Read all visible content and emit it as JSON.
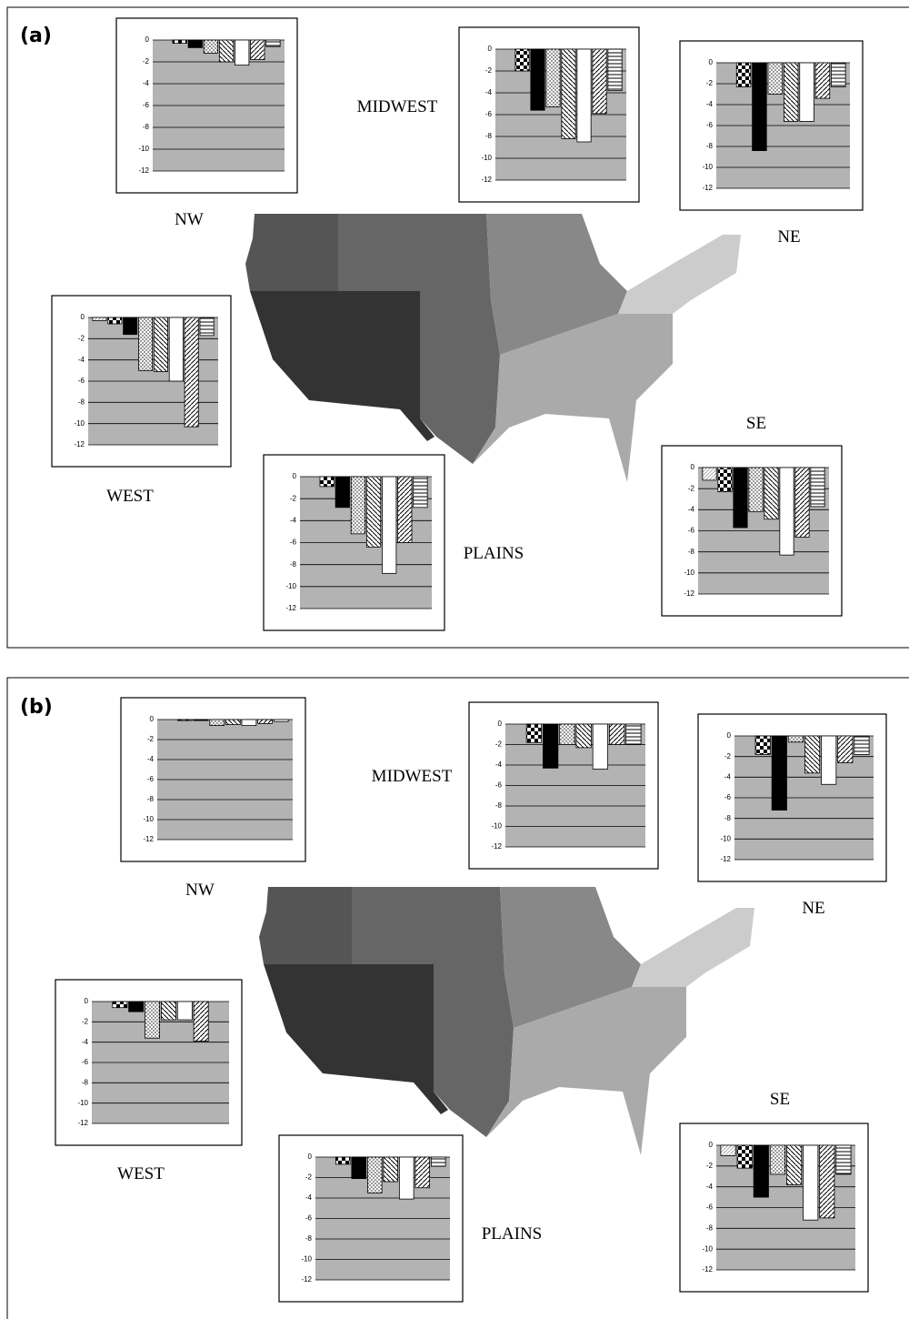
{
  "panels": [
    "(a)",
    "(b)"
  ],
  "chart_data": [
    {
      "type": "bar",
      "title": "NW",
      "categories": [
        null,
        null,
        null,
        null,
        null,
        null,
        null,
        null
      ],
      "values": [
        0,
        -0.3,
        -0.7,
        -1.2,
        -2.0,
        -2.3,
        -1.8,
        -0.6
      ],
      "ylim": [
        -12,
        0
      ],
      "yticks": [
        0,
        -2,
        -4,
        -6,
        -8,
        -10,
        -12
      ],
      "grid": true
    },
    {
      "type": "bar",
      "title": "MIDWEST",
      "categories": [
        null,
        null,
        null,
        null,
        null,
        null,
        null,
        null
      ],
      "values": [
        0,
        -2.0,
        -5.6,
        -5.3,
        -8.2,
        -8.5,
        -5.9,
        -3.8
      ],
      "ylim": [
        -12,
        0
      ],
      "yticks": [
        0,
        -2,
        -4,
        -6,
        -8,
        -10,
        -12
      ],
      "grid": true
    },
    {
      "type": "bar",
      "title": "NE",
      "categories": [
        null,
        null,
        null,
        null,
        null,
        null,
        null,
        null
      ],
      "values": [
        0,
        -2.3,
        -8.4,
        -3.0,
        -5.6,
        -5.6,
        -3.4,
        -2.3
      ],
      "ylim": [
        -12,
        0
      ],
      "yticks": [
        0,
        -2,
        -4,
        -6,
        -8,
        -10,
        -12
      ],
      "grid": true
    },
    {
      "type": "bar",
      "title": "WEST",
      "categories": [
        null,
        null,
        null,
        null,
        null,
        null,
        null,
        null
      ],
      "values": [
        -0.3,
        -0.6,
        -1.6,
        -5.0,
        -5.1,
        -6.0,
        -10.3,
        -1.7
      ],
      "ylim": [
        -12,
        0
      ],
      "yticks": [
        0,
        -2,
        -4,
        -6,
        -8,
        -10,
        -12
      ],
      "grid": true
    },
    {
      "type": "bar",
      "title": "PLAINS",
      "categories": [
        null,
        null,
        null,
        null,
        null,
        null,
        null,
        null
      ],
      "values": [
        0,
        -0.9,
        -2.8,
        -5.2,
        -6.4,
        -8.8,
        -6.0,
        -2.8
      ],
      "ylim": [
        -12,
        0
      ],
      "yticks": [
        0,
        -2,
        -4,
        -6,
        -8,
        -10,
        -12
      ],
      "grid": true
    },
    {
      "type": "bar",
      "title": "SE",
      "categories": [
        null,
        null,
        null,
        null,
        null,
        null,
        null,
        null
      ],
      "values": [
        -1.2,
        -2.3,
        -5.7,
        -4.2,
        -4.9,
        -8.3,
        -6.6,
        -3.7
      ],
      "ylim": [
        -12,
        0
      ],
      "yticks": [
        0,
        -2,
        -4,
        -6,
        -8,
        -10,
        -12
      ],
      "grid": true
    },
    {
      "type": "bar",
      "title": "NW",
      "categories": [
        null,
        null,
        null,
        null,
        null,
        null,
        null,
        null
      ],
      "values": [
        0,
        -0.1,
        -0.1,
        -0.6,
        -0.5,
        -0.6,
        -0.4,
        -0.2
      ],
      "ylim": [
        -12,
        0
      ],
      "yticks": [
        0,
        -2,
        -4,
        -6,
        -8,
        -10,
        -12
      ],
      "grid": true
    },
    {
      "type": "bar",
      "title": "MIDWEST",
      "categories": [
        null,
        null,
        null,
        null,
        null,
        null,
        null,
        null
      ],
      "values": [
        0,
        -1.8,
        -4.3,
        -2.0,
        -2.3,
        -4.4,
        -2.0,
        -2.0
      ],
      "ylim": [
        -12,
        0
      ],
      "yticks": [
        0,
        -2,
        -4,
        -6,
        -8,
        -10,
        -12
      ],
      "grid": true
    },
    {
      "type": "bar",
      "title": "NE",
      "categories": [
        null,
        null,
        null,
        null,
        null,
        null,
        null,
        null
      ],
      "values": [
        0,
        -1.8,
        -7.2,
        -0.6,
        -3.6,
        -4.7,
        -2.6,
        -1.8
      ],
      "ylim": [
        -12,
        0
      ],
      "yticks": [
        0,
        -2,
        -4,
        -6,
        -8,
        -10,
        -12
      ],
      "grid": true
    },
    {
      "type": "bar",
      "title": "WEST",
      "categories": [
        null,
        null,
        null,
        null,
        null,
        null,
        null,
        null
      ],
      "values": [
        0,
        -0.6,
        -1.0,
        -3.6,
        -1.8,
        -1.8,
        -3.9,
        0
      ],
      "ylim": [
        -12,
        0
      ],
      "yticks": [
        0,
        -2,
        -4,
        -6,
        -8,
        -10,
        -12
      ],
      "grid": true
    },
    {
      "type": "bar",
      "title": "PLAINS",
      "categories": [
        null,
        null,
        null,
        null,
        null,
        null,
        null,
        null
      ],
      "values": [
        0,
        -0.7,
        -2.1,
        -3.5,
        -2.4,
        -4.1,
        -3.0,
        -0.9
      ],
      "ylim": [
        -12,
        0
      ],
      "yticks": [
        0,
        -2,
        -4,
        -6,
        -8,
        -10,
        -12
      ],
      "grid": true
    },
    {
      "type": "bar",
      "title": "SE",
      "categories": [
        null,
        null,
        null,
        null,
        null,
        null,
        null,
        null
      ],
      "values": [
        -1.0,
        -2.2,
        -5.0,
        -2.8,
        -3.8,
        -7.2,
        -7.0,
        -2.8
      ],
      "ylim": [
        -12,
        0
      ],
      "yticks": [
        0,
        -2,
        -4,
        -6,
        -8,
        -10,
        -12
      ],
      "grid": true
    }
  ]
}
